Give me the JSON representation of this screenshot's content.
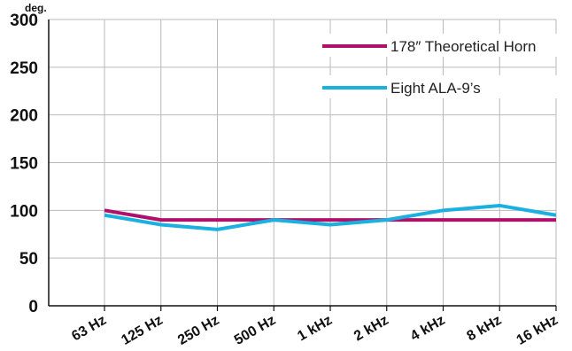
{
  "chart_data": {
    "type": "line",
    "ylabel": "deg.",
    "categories": [
      "63 Hz",
      "125 Hz",
      "250 Hz",
      "500 Hz",
      "1 kHz",
      "2 kHz",
      "4 kHz",
      "8 kHz",
      "16 kHz"
    ],
    "ylim": [
      0,
      300
    ],
    "yticks": [
      0,
      50,
      100,
      150,
      200,
      250,
      300
    ],
    "grid": true,
    "legend_position": "top-right",
    "series": [
      {
        "name": "178″ Theoretical Horn",
        "color": "#b0106a",
        "values": [
          100,
          90,
          90,
          90,
          90,
          90,
          90,
          90,
          90
        ]
      },
      {
        "name": "Eight ALA-9’s",
        "color": "#1ab0e0",
        "values": [
          95,
          85,
          80,
          90,
          85,
          90,
          100,
          105,
          95
        ]
      }
    ]
  }
}
